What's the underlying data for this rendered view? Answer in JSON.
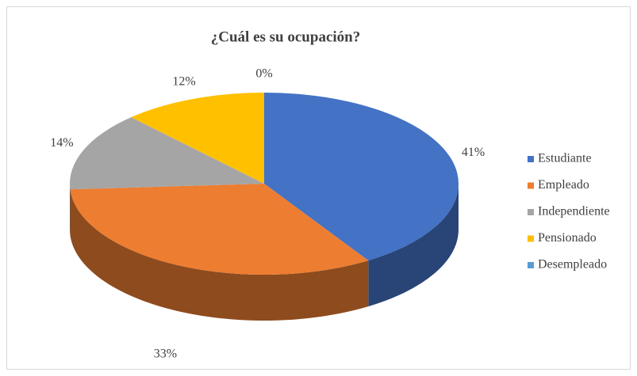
{
  "chart_data": {
    "type": "pie",
    "title": "¿Cuál es su ocupación?",
    "categories": [
      "Estudiante",
      "Empleado",
      "Independiente",
      "Pensionado",
      "Desempleado"
    ],
    "values": [
      41,
      33,
      14,
      12,
      0
    ],
    "value_labels": [
      "41%",
      "33%",
      "14%",
      "12%",
      "0%"
    ],
    "colors": [
      "#4472c4",
      "#ed7d31",
      "#a5a5a5",
      "#ffc000",
      "#5b9bd5"
    ],
    "legend": "right"
  }
}
